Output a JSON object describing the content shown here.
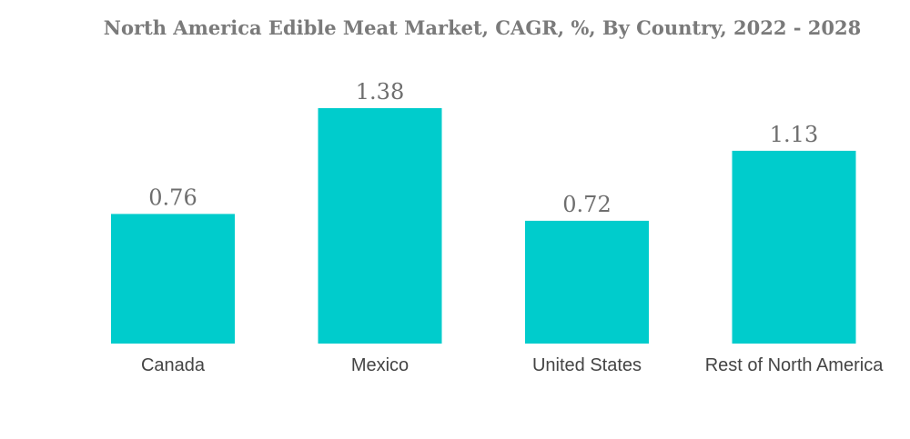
{
  "chart_data": {
    "type": "bar",
    "title": "North America Edible Meat Market, CAGR, %, By Country, 2022 - 2028",
    "xlabel": "",
    "ylabel": "",
    "categories": [
      "Canada",
      "Mexico",
      "United States",
      "Rest of North America"
    ],
    "values": [
      0.76,
      1.38,
      0.72,
      1.13
    ],
    "data_labels": [
      "0.76",
      "1.38",
      "0.72",
      "1.13"
    ],
    "ylim": [
      0,
      1.38
    ],
    "grid": false,
    "legend": "none",
    "bar_color": "#00CCCC"
  }
}
